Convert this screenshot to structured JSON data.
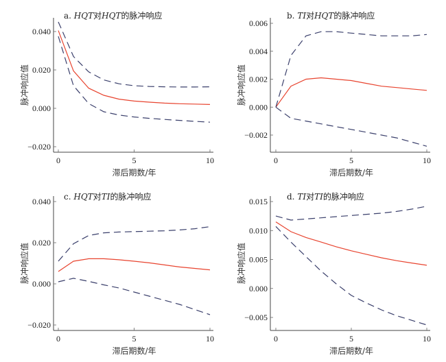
{
  "chart_data": [
    {
      "type": "line",
      "title": "a. HQT对HQT的脉冲响应",
      "title_parts": [
        {
          "t": "a. ",
          "i": false
        },
        {
          "t": "HQT",
          "i": true
        },
        {
          "t": "对",
          "i": false
        },
        {
          "t": "HQT",
          "i": true
        },
        {
          "t": "的脉冲响应",
          "i": false
        }
      ],
      "xlabel": "滞后期数/年",
      "ylabel": "脉冲响应值",
      "xlim": [
        0,
        10
      ],
      "ylim": [
        -0.02,
        0.04
      ],
      "xticks": [
        0,
        5,
        10
      ],
      "xtick_labels": [
        "0",
        "5",
        "10"
      ],
      "yticks": [
        0.04,
        0.02,
        0.0,
        -0.02
      ],
      "ytick_labels": [
        "0.040",
        "0.020",
        "0.000",
        "-0.020"
      ],
      "x": [
        0,
        1,
        2,
        3,
        4,
        5,
        6,
        7,
        8,
        9,
        10
      ],
      "series": [
        {
          "name": "response",
          "style": "solid",
          "color": "#e8432e",
          "values": [
            0.0405,
            0.0195,
            0.0105,
            0.0068,
            0.0048,
            0.0038,
            0.0032,
            0.0027,
            0.0024,
            0.0022,
            0.002
          ]
        },
        {
          "name": "upper",
          "style": "dashed",
          "color": "#3a3f6b",
          "values": [
            0.045,
            0.027,
            0.019,
            0.0148,
            0.0128,
            0.0118,
            0.0114,
            0.0112,
            0.0111,
            0.0111,
            0.0112
          ]
        },
        {
          "name": "lower",
          "style": "dashed",
          "color": "#3a3f6b",
          "values": [
            0.0375,
            0.0118,
            0.0025,
            -0.0018,
            -0.0035,
            -0.0045,
            -0.0052,
            -0.0058,
            -0.0063,
            -0.0068,
            -0.0072
          ]
        }
      ]
    },
    {
      "type": "line",
      "title": "b. TI对HQT的脉冲响应",
      "title_parts": [
        {
          "t": "b. ",
          "i": false
        },
        {
          "t": "TI",
          "i": true
        },
        {
          "t": "对",
          "i": false
        },
        {
          "t": "HQT",
          "i": true
        },
        {
          "t": "的脉冲响应",
          "i": false
        }
      ],
      "xlabel": "滞后期数/年",
      "ylabel": "脉冲响应值",
      "xlim": [
        0,
        10
      ],
      "ylim": [
        -0.002,
        0.006
      ],
      "xticks": [
        0,
        5,
        10
      ],
      "xtick_labels": [
        "0",
        "5",
        "10"
      ],
      "yticks": [
        0.006,
        0.004,
        0.002,
        0.0,
        -0.002
      ],
      "ytick_labels": [
        "0.006",
        "0.004",
        "0.002",
        "0.000",
        "-0.002"
      ],
      "x": [
        0,
        1,
        2,
        3,
        4,
        5,
        6,
        7,
        8,
        9,
        10
      ],
      "series": [
        {
          "name": "response",
          "style": "solid",
          "color": "#e8432e",
          "values": [
            0.0,
            0.0015,
            0.002,
            0.0021,
            0.002,
            0.0019,
            0.0017,
            0.0015,
            0.0014,
            0.0013,
            0.0012
          ]
        },
        {
          "name": "upper",
          "style": "dashed",
          "color": "#3a3f6b",
          "values": [
            0.0,
            0.0037,
            0.0051,
            0.0054,
            0.0054,
            0.0053,
            0.0052,
            0.0051,
            0.0051,
            0.0051,
            0.0052
          ]
        },
        {
          "name": "lower",
          "style": "dashed",
          "color": "#3a3f6b",
          "values": [
            0.0,
            -0.0008,
            -0.001,
            -0.0012,
            -0.0014,
            -0.0016,
            -0.0018,
            -0.002,
            -0.0022,
            -0.0025,
            -0.0028
          ]
        }
      ]
    },
    {
      "type": "line",
      "title": "c. HQT对TI的脉冲响应",
      "title_parts": [
        {
          "t": "c. ",
          "i": false
        },
        {
          "t": "HQT",
          "i": true
        },
        {
          "t": "对",
          "i": false
        },
        {
          "t": "TI",
          "i": true
        },
        {
          "t": "的脉冲响应",
          "i": false
        }
      ],
      "xlabel": "滞后期数/年",
      "ylabel": "脉冲响应值",
      "xlim": [
        0,
        10
      ],
      "ylim": [
        -0.02,
        0.04
      ],
      "xticks": [
        0,
        5,
        10
      ],
      "xtick_labels": [
        "0",
        "5",
        "10"
      ],
      "yticks": [
        0.04,
        0.02,
        0.0,
        -0.02
      ],
      "ytick_labels": [
        "0.040",
        "0.020",
        "0.000",
        "-0.020"
      ],
      "x": [
        0,
        1,
        2,
        3,
        4,
        5,
        6,
        7,
        8,
        9,
        10
      ],
      "series": [
        {
          "name": "response",
          "style": "solid",
          "color": "#e8432e",
          "values": [
            0.006,
            0.011,
            0.0122,
            0.0122,
            0.0117,
            0.011,
            0.0102,
            0.0092,
            0.0082,
            0.0075,
            0.0068
          ]
        },
        {
          "name": "upper",
          "style": "dashed",
          "color": "#3a3f6b",
          "values": [
            0.011,
            0.0195,
            0.0235,
            0.0248,
            0.0252,
            0.0254,
            0.0256,
            0.0258,
            0.0262,
            0.0268,
            0.0278
          ]
        },
        {
          "name": "lower",
          "style": "dashed",
          "color": "#3a3f6b",
          "values": [
            0.001,
            0.0027,
            0.0012,
            -0.0005,
            -0.002,
            -0.004,
            -0.006,
            -0.008,
            -0.01,
            -0.0125,
            -0.015
          ]
        }
      ]
    },
    {
      "type": "line",
      "title": "d. TI对TI的脉冲响应",
      "title_parts": [
        {
          "t": "d. ",
          "i": false
        },
        {
          "t": "TI",
          "i": true
        },
        {
          "t": "对",
          "i": false
        },
        {
          "t": "TI",
          "i": true
        },
        {
          "t": "的脉冲响应",
          "i": false
        }
      ],
      "xlabel": "滞后期数/年",
      "ylabel": "脉冲响应值",
      "xlim": [
        0,
        10
      ],
      "ylim": [
        -0.005,
        0.015
      ],
      "xticks": [
        0,
        5,
        10
      ],
      "xtick_labels": [
        "0",
        "5",
        "10"
      ],
      "yticks": [
        0.015,
        0.01,
        0.005,
        0.0,
        -0.005
      ],
      "ytick_labels": [
        "0.015",
        "0.010",
        "0.005",
        "0.000",
        "-0.005"
      ],
      "x": [
        0,
        1,
        2,
        3,
        4,
        5,
        6,
        7,
        8,
        9,
        10
      ],
      "series": [
        {
          "name": "response",
          "style": "solid",
          "color": "#e8432e",
          "values": [
            0.0115,
            0.0098,
            0.0088,
            0.008,
            0.0072,
            0.0065,
            0.0059,
            0.0053,
            0.0048,
            0.0044,
            0.004
          ]
        },
        {
          "name": "upper",
          "style": "dashed",
          "color": "#3a3f6b",
          "values": [
            0.0125,
            0.0118,
            0.012,
            0.0122,
            0.0124,
            0.0126,
            0.0128,
            0.013,
            0.0133,
            0.0137,
            0.0142
          ]
        },
        {
          "name": "lower",
          "style": "dashed",
          "color": "#3a3f6b",
          "values": [
            0.0107,
            0.008,
            0.0055,
            0.003,
            0.0008,
            -0.0012,
            -0.0025,
            -0.0037,
            -0.0047,
            -0.0055,
            -0.0063
          ]
        }
      ]
    }
  ]
}
